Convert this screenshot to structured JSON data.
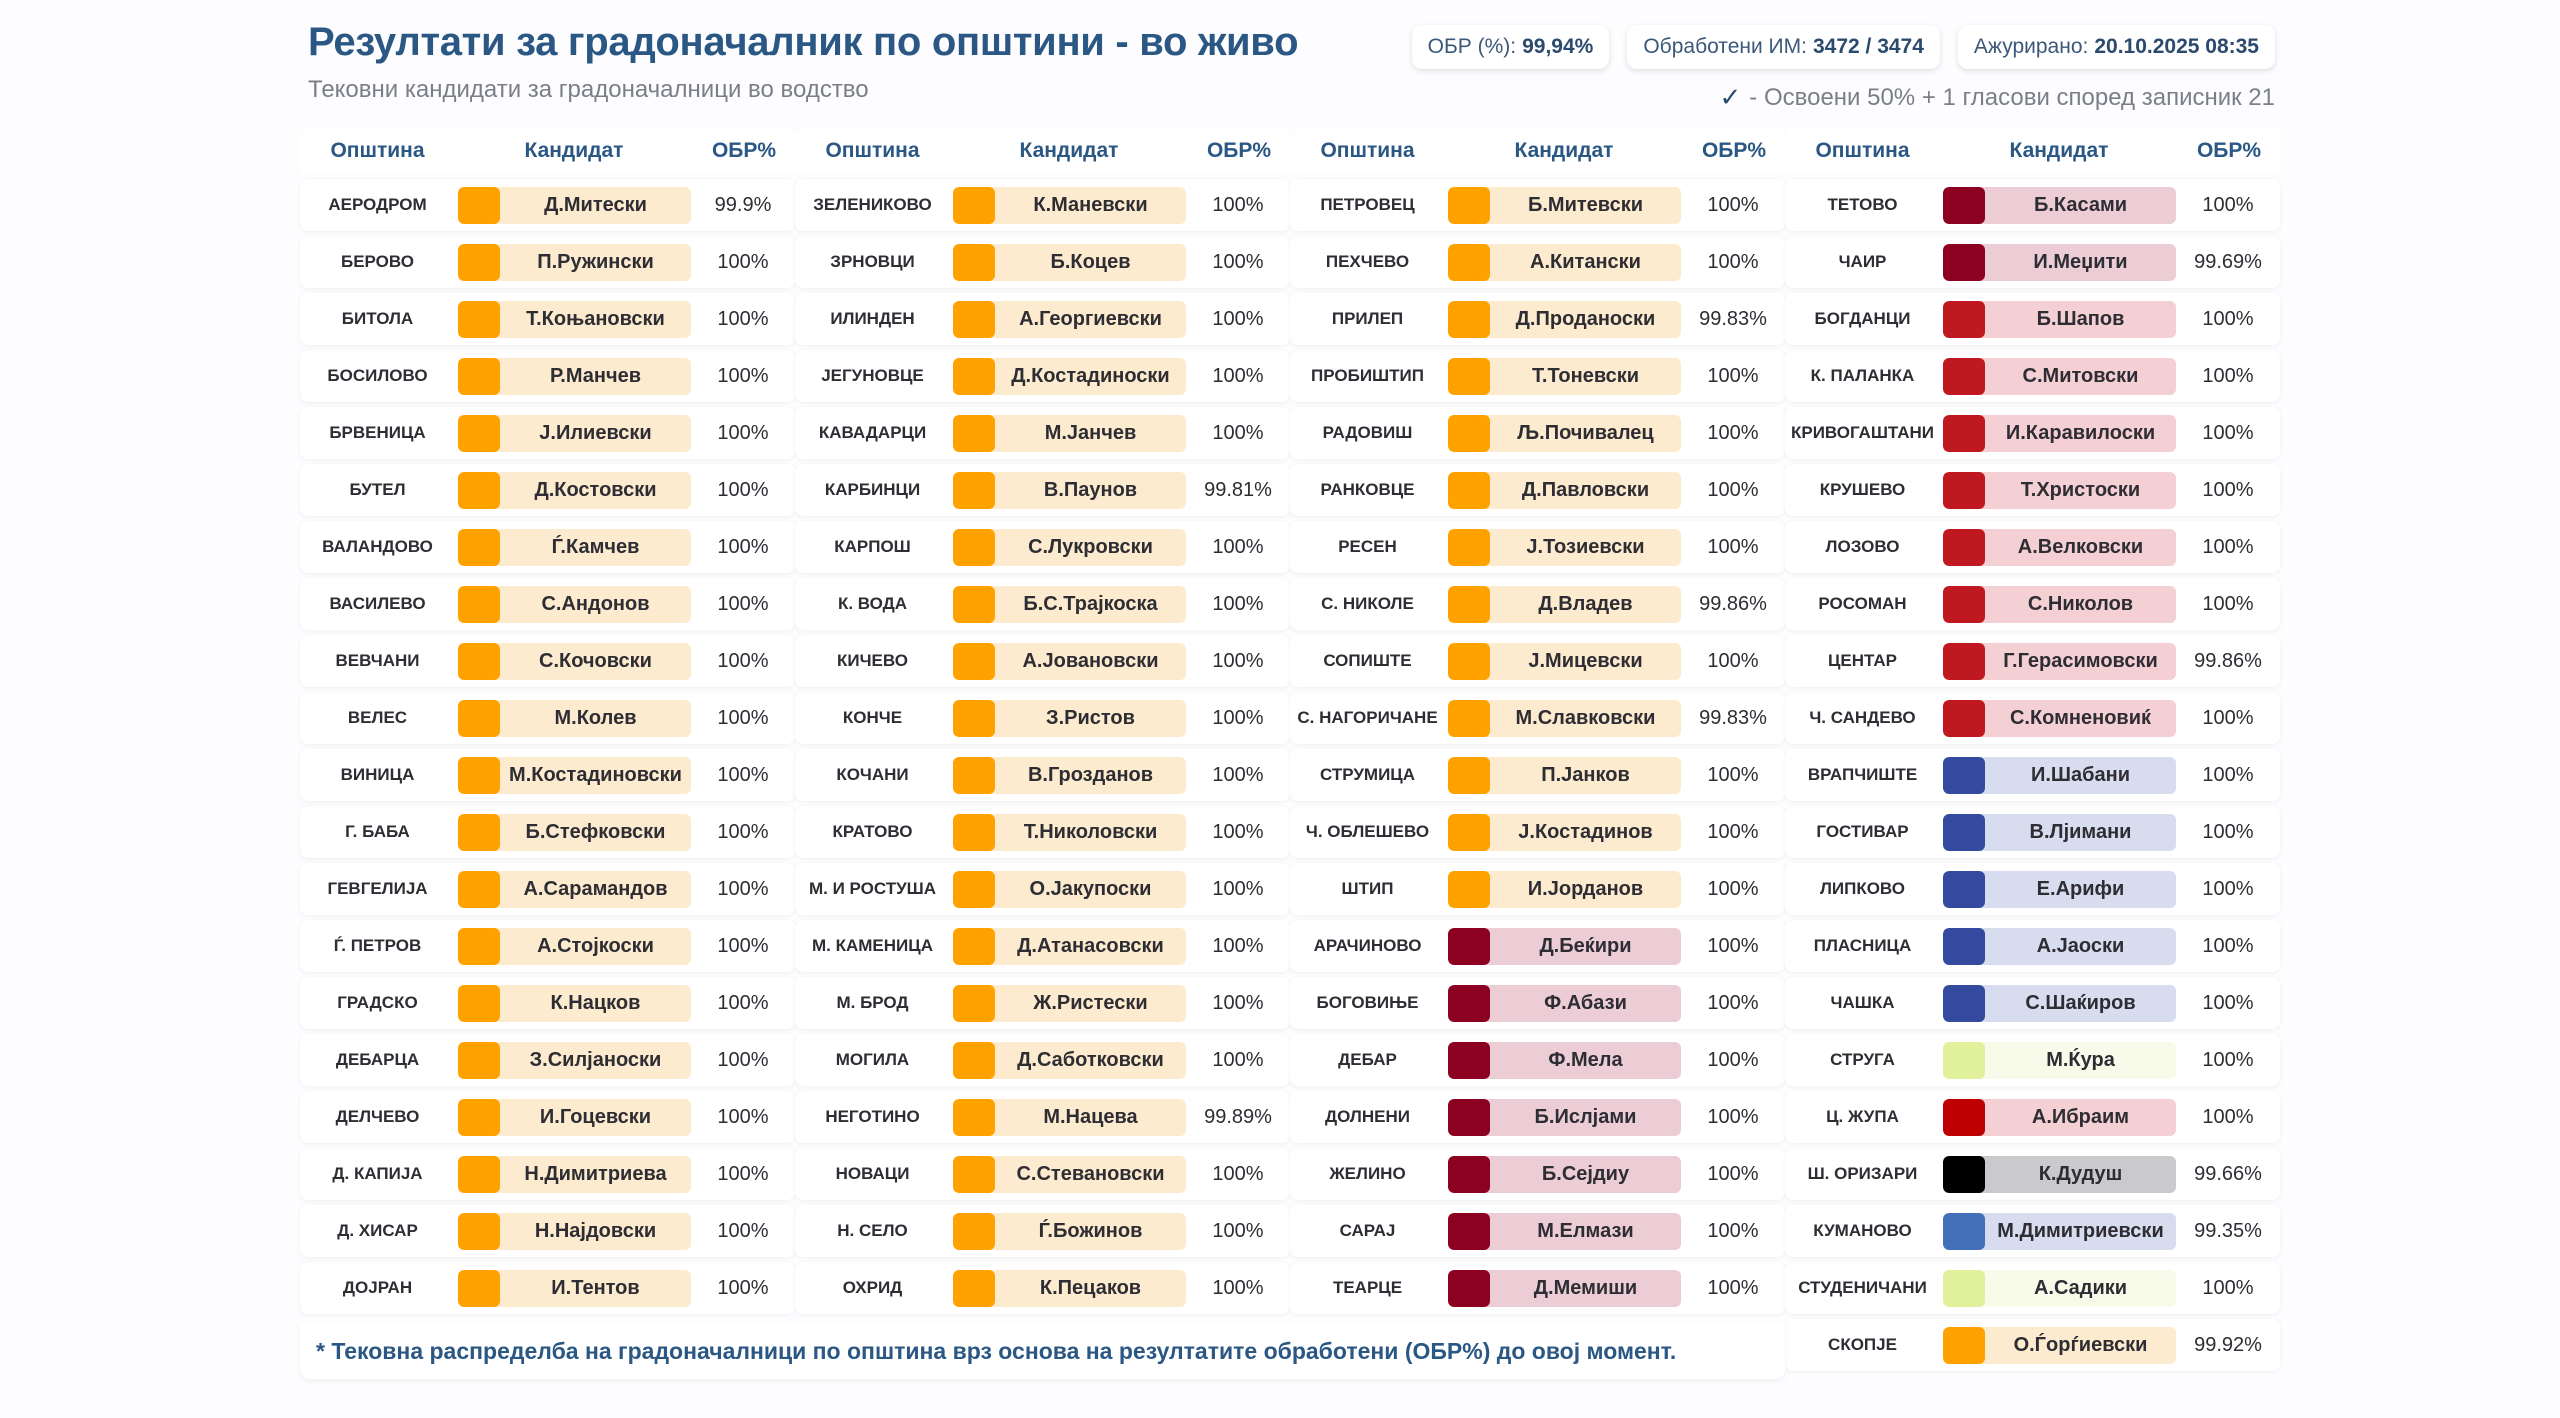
{
  "header": {
    "title": "Резултати за градоначалник по општини - во живо",
    "subtitle": "Тековни кандидати за градоначалници во водство",
    "obr_label": "ОБР (%):",
    "obr_value": "99,94%",
    "processed_label": "Обработени ИМ:",
    "processed_value": "3472 / 3474",
    "updated_label": "Ажурирано:",
    "updated_value": "20.10.2025 08:35",
    "check_icon": "checkmark-icon",
    "check_note": "- Освоени 50% + 1 гласови според записник 21"
  },
  "table_headers": {
    "municipality": "Општина",
    "candidate": "Кандидат",
    "obr": "ОБР%"
  },
  "palette": {
    "orange": {
      "swatch": "#ffa200",
      "bg": "#fdebcf"
    },
    "darkred": {
      "swatch": "#8c0022",
      "bg": "#eccdd6"
    },
    "red": {
      "swatch": "#c01820",
      "bg": "#f4d0d4"
    },
    "blue": {
      "swatch": "#344a9e",
      "bg": "#d8dcef"
    },
    "lightgreen": {
      "swatch": "#e1f19b",
      "bg": "#f8fbea"
    },
    "crimson": {
      "swatch": "#bf0000",
      "bg": "#f4d0d4"
    },
    "black": {
      "swatch": "#000000",
      "bg": "#cac9cb"
    },
    "lightblue": {
      "swatch": "#4470b9",
      "bg": "#d8dcef"
    }
  },
  "columns": [
    [
      {
        "municipality": "АЕРОДРОМ",
        "candidate": "Д.Митески",
        "obr": "99.9%",
        "color": "orange"
      },
      {
        "municipality": "БЕРОВО",
        "candidate": "П.Ружински",
        "obr": "100%",
        "color": "orange"
      },
      {
        "municipality": "БИТОЛА",
        "candidate": "Т.Коњановски",
        "obr": "100%",
        "color": "orange"
      },
      {
        "municipality": "БОСИЛОВО",
        "candidate": "Р.Манчев",
        "obr": "100%",
        "color": "orange"
      },
      {
        "municipality": "БРВЕНИЦА",
        "candidate": "Ј.Илиевски",
        "obr": "100%",
        "color": "orange"
      },
      {
        "municipality": "БУТЕЛ",
        "candidate": "Д.Костовски",
        "obr": "100%",
        "color": "orange"
      },
      {
        "municipality": "ВАЛАНДОВО",
        "candidate": "Ѓ.Камчев",
        "obr": "100%",
        "color": "orange"
      },
      {
        "municipality": "ВАСИЛЕВО",
        "candidate": "С.Андонов",
        "obr": "100%",
        "color": "orange"
      },
      {
        "municipality": "ВЕВЧАНИ",
        "candidate": "С.Кочовски",
        "obr": "100%",
        "color": "orange"
      },
      {
        "municipality": "ВЕЛЕС",
        "candidate": "М.Колев",
        "obr": "100%",
        "color": "orange"
      },
      {
        "municipality": "ВИНИЦА",
        "candidate": "М.Костадиновски",
        "obr": "100%",
        "color": "orange"
      },
      {
        "municipality": "Г. БАБА",
        "candidate": "Б.Стефковски",
        "obr": "100%",
        "color": "orange"
      },
      {
        "municipality": "ГЕВГЕЛИЈА",
        "candidate": "А.Сарамандов",
        "obr": "100%",
        "color": "orange"
      },
      {
        "municipality": "Ѓ. ПЕТРОВ",
        "candidate": "А.Стојкоски",
        "obr": "100%",
        "color": "orange"
      },
      {
        "municipality": "ГРАДСКО",
        "candidate": "К.Нацков",
        "obr": "100%",
        "color": "orange"
      },
      {
        "municipality": "ДЕБАРЦА",
        "candidate": "З.Силјаноски",
        "obr": "100%",
        "color": "orange"
      },
      {
        "municipality": "ДЕЛЧЕВО",
        "candidate": "И.Гоцевски",
        "obr": "100%",
        "color": "orange"
      },
      {
        "municipality": "Д. КАПИЈА",
        "candidate": "Н.Димитриева",
        "obr": "100%",
        "color": "orange"
      },
      {
        "municipality": "Д. ХИСАР",
        "candidate": "Н.Најдовски",
        "obr": "100%",
        "color": "orange"
      },
      {
        "municipality": "ДОЈРАН",
        "candidate": "И.Тентов",
        "obr": "100%",
        "color": "orange"
      }
    ],
    [
      {
        "municipality": "ЗЕЛЕНИКОВО",
        "candidate": "К.Маневски",
        "obr": "100%",
        "color": "orange"
      },
      {
        "municipality": "ЗРНОВЦИ",
        "candidate": "Б.Коцев",
        "obr": "100%",
        "color": "orange"
      },
      {
        "municipality": "ИЛИНДЕН",
        "candidate": "А.Георгиевски",
        "obr": "100%",
        "color": "orange"
      },
      {
        "municipality": "ЈЕГУНОВЦЕ",
        "candidate": "Д.Костадиноски",
        "obr": "100%",
        "color": "orange"
      },
      {
        "municipality": "КАВАДАРЦИ",
        "candidate": "М.Јанчев",
        "obr": "100%",
        "color": "orange"
      },
      {
        "municipality": "КАРБИНЦИ",
        "candidate": "В.Паунов",
        "obr": "99.81%",
        "color": "orange"
      },
      {
        "municipality": "КАРПОШ",
        "candidate": "С.Лукровски",
        "obr": "100%",
        "color": "orange"
      },
      {
        "municipality": "К. ВОДА",
        "candidate": "Б.С.Трајкоска",
        "obr": "100%",
        "color": "orange"
      },
      {
        "municipality": "КИЧЕВО",
        "candidate": "А.Јовановски",
        "obr": "100%",
        "color": "orange"
      },
      {
        "municipality": "КОНЧЕ",
        "candidate": "З.Ристов",
        "obr": "100%",
        "color": "orange"
      },
      {
        "municipality": "КОЧАНИ",
        "candidate": "В.Грозданов",
        "obr": "100%",
        "color": "orange"
      },
      {
        "municipality": "КРАТОВО",
        "candidate": "Т.Николовски",
        "obr": "100%",
        "color": "orange"
      },
      {
        "municipality": "М. И РОСТУША",
        "candidate": "О.Јакупоски",
        "obr": "100%",
        "color": "orange"
      },
      {
        "municipality": "М. КАМЕНИЦА",
        "candidate": "Д.Атанасовски",
        "obr": "100%",
        "color": "orange"
      },
      {
        "municipality": "М. БРОД",
        "candidate": "Ж.Ристески",
        "obr": "100%",
        "color": "orange"
      },
      {
        "municipality": "МОГИЛА",
        "candidate": "Д.Саботковски",
        "obr": "100%",
        "color": "orange"
      },
      {
        "municipality": "НЕГОТИНО",
        "candidate": "М.Нацева",
        "obr": "99.89%",
        "color": "orange"
      },
      {
        "municipality": "НОВАЦИ",
        "candidate": "С.Стевановски",
        "obr": "100%",
        "color": "orange"
      },
      {
        "municipality": "Н. СЕЛО",
        "candidate": "Ѓ.Божинов",
        "obr": "100%",
        "color": "orange"
      },
      {
        "municipality": "ОХРИД",
        "candidate": "К.Пецаков",
        "obr": "100%",
        "color": "orange"
      }
    ],
    [
      {
        "municipality": "ПЕТРОВЕЦ",
        "candidate": "Б.Митевски",
        "obr": "100%",
        "color": "orange"
      },
      {
        "municipality": "ПЕХЧЕВО",
        "candidate": "А.Китански",
        "obr": "100%",
        "color": "orange"
      },
      {
        "municipality": "ПРИЛЕП",
        "candidate": "Д.Проданоски",
        "obr": "99.83%",
        "color": "orange"
      },
      {
        "municipality": "ПРОБИШТИП",
        "candidate": "Т.Тоневски",
        "obr": "100%",
        "color": "orange"
      },
      {
        "municipality": "РАДОВИШ",
        "candidate": "Љ.Почивалец",
        "obr": "100%",
        "color": "orange"
      },
      {
        "municipality": "РАНКОВЦЕ",
        "candidate": "Д.Павловски",
        "obr": "100%",
        "color": "orange"
      },
      {
        "municipality": "РЕСЕН",
        "candidate": "Ј.Тозиевски",
        "obr": "100%",
        "color": "orange"
      },
      {
        "municipality": "С. НИКОЛЕ",
        "candidate": "Д.Владев",
        "obr": "99.86%",
        "color": "orange"
      },
      {
        "municipality": "СОПИШТЕ",
        "candidate": "Ј.Мицевски",
        "obr": "100%",
        "color": "orange"
      },
      {
        "municipality": "С. НАГОРИЧАНЕ",
        "candidate": "М.Славковски",
        "obr": "99.83%",
        "color": "orange"
      },
      {
        "municipality": "СТРУМИЦА",
        "candidate": "П.Јанков",
        "obr": "100%",
        "color": "orange"
      },
      {
        "municipality": "Ч. ОБЛЕШЕВО",
        "candidate": "Ј.Костадинов",
        "obr": "100%",
        "color": "orange"
      },
      {
        "municipality": "ШТИП",
        "candidate": "И.Јорданов",
        "obr": "100%",
        "color": "orange"
      },
      {
        "municipality": "АРАЧИНОВО",
        "candidate": "Д.Беќири",
        "obr": "100%",
        "color": "darkred"
      },
      {
        "municipality": "БОГОВИЊЕ",
        "candidate": "Ф.Абази",
        "obr": "100%",
        "color": "darkred"
      },
      {
        "municipality": "ДЕБАР",
        "candidate": "Ф.Мела",
        "obr": "100%",
        "color": "darkred"
      },
      {
        "municipality": "ДОЛНЕНИ",
        "candidate": "Б.Ислјами",
        "obr": "100%",
        "color": "darkred"
      },
      {
        "municipality": "ЖЕЛИНО",
        "candidate": "Б.Сејдиу",
        "obr": "100%",
        "color": "darkred"
      },
      {
        "municipality": "САРАЈ",
        "candidate": "М.Елмази",
        "obr": "100%",
        "color": "darkred"
      },
      {
        "municipality": "ТЕАРЦЕ",
        "candidate": "Д.Мемиши",
        "obr": "100%",
        "color": "darkred"
      }
    ],
    [
      {
        "municipality": "ТЕТОВО",
        "candidate": "Б.Касами",
        "obr": "100%",
        "color": "darkred"
      },
      {
        "municipality": "ЧАИР",
        "candidate": "И.Меџити",
        "obr": "99.69%",
        "color": "darkred"
      },
      {
        "municipality": "БОГДАНЦИ",
        "candidate": "Б.Шапов",
        "obr": "100%",
        "color": "red"
      },
      {
        "municipality": "К. ПАЛАНКА",
        "candidate": "С.Митовски",
        "obr": "100%",
        "color": "red"
      },
      {
        "municipality": "КРИВОГАШТАНИ",
        "candidate": "И.Каравилоски",
        "obr": "100%",
        "color": "red"
      },
      {
        "municipality": "КРУШЕВО",
        "candidate": "Т.Христоски",
        "obr": "100%",
        "color": "red"
      },
      {
        "municipality": "ЛОЗОВО",
        "candidate": "А.Велковски",
        "obr": "100%",
        "color": "red"
      },
      {
        "municipality": "РОСОМАН",
        "candidate": "С.Николов",
        "obr": "100%",
        "color": "red"
      },
      {
        "municipality": "ЦЕНТАР",
        "candidate": "Г.Герасимовски",
        "obr": "99.86%",
        "color": "red"
      },
      {
        "municipality": "Ч. САНДЕВО",
        "candidate": "С.Комненовиќ",
        "obr": "100%",
        "color": "red"
      },
      {
        "municipality": "ВРАПЧИШТЕ",
        "candidate": "И.Шабани",
        "obr": "100%",
        "color": "blue"
      },
      {
        "municipality": "ГОСТИВАР",
        "candidate": "В.Лјимани",
        "obr": "100%",
        "color": "blue"
      },
      {
        "municipality": "ЛИПКОВО",
        "candidate": "Е.Арифи",
        "obr": "100%",
        "color": "blue"
      },
      {
        "municipality": "ПЛАСНИЦА",
        "candidate": "А.Јаоски",
        "obr": "100%",
        "color": "blue"
      },
      {
        "municipality": "ЧАШКА",
        "candidate": "С.Шаќиров",
        "obr": "100%",
        "color": "blue"
      },
      {
        "municipality": "СТРУГА",
        "candidate": "М.Ќура",
        "obr": "100%",
        "color": "lightgreen"
      },
      {
        "municipality": "Ц. ЖУПА",
        "candidate": "А.Ибраим",
        "obr": "100%",
        "color": "crimson"
      },
      {
        "municipality": "Ш. ОРИЗАРИ",
        "candidate": "К.Дудуш",
        "obr": "99.66%",
        "color": "black"
      },
      {
        "municipality": "КУМАНОВО",
        "candidate": "М.Димитриевски",
        "obr": "99.35%",
        "color": "lightblue"
      },
      {
        "municipality": "СТУДЕНИЧАНИ",
        "candidate": "А.Садики",
        "obr": "100%",
        "color": "lightgreen"
      },
      {
        "municipality": "СКОПЈЕ",
        "candidate": "О.Ѓорѓиевски",
        "obr": "99.92%",
        "color": "orange"
      }
    ]
  ],
  "footer_note": "* Тековна распределба на градоначалници по општина врз основа на резултатите обработени (ОБР%) до овој момент."
}
